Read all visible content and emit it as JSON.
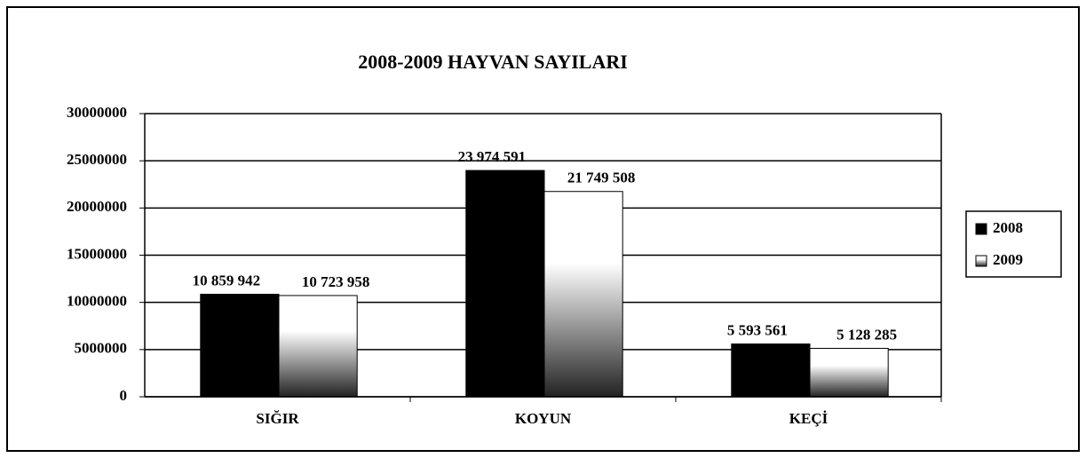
{
  "chart_data": {
    "type": "bar",
    "title": "2008-2009 HAYVAN SAYILARI",
    "categories": [
      "SIĞIR",
      "KOYUN",
      "KEÇİ"
    ],
    "series": [
      {
        "name": "2008",
        "color": "#000000",
        "values": [
          10859942,
          23974591,
          5593561
        ],
        "value_labels": [
          "10 859 942",
          "23 974 591",
          "5 593 561"
        ]
      },
      {
        "name": "2009",
        "color": "#ffffff",
        "values": [
          10723958,
          21749508,
          5128285
        ],
        "value_labels": [
          "10 723 958",
          "21 749 508",
          "5 128 285"
        ]
      }
    ],
    "ylim": [
      0,
      30000000
    ],
    "yticks": [
      0,
      5000000,
      10000000,
      15000000,
      20000000,
      25000000,
      30000000
    ],
    "grid": true,
    "legend": "right"
  }
}
